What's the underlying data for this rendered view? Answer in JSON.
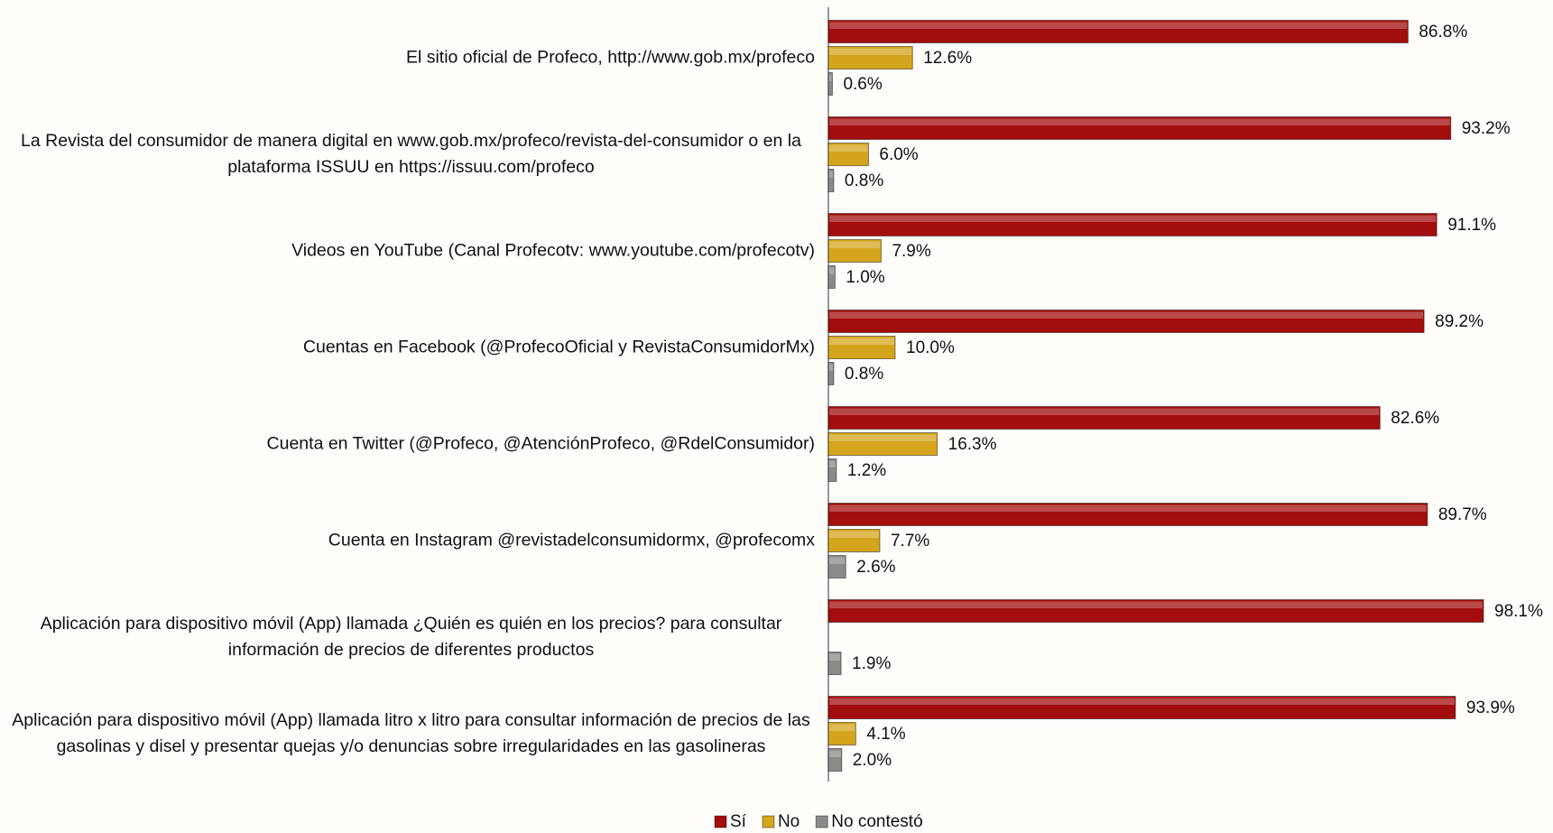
{
  "chart_data": {
    "type": "bar",
    "orientation": "horizontal",
    "categories": [
      "El sitio oficial de Profeco, http://www.gob.mx/profeco",
      "La Revista del consumidor de manera digital  en  www.gob.mx/profeco/revista-del-consumidor o en la plataforma ISSUU en https://issuu.com/profeco",
      "Videos en YouTube (Canal Profecotv: www.youtube.com/profecotv)",
      "Cuentas en Facebook (@ProfecoOficial y RevistaConsumidorMx)",
      "Cuenta en Twitter (@Profeco, @AtenciónProfeco, @RdelConsumidor)",
      "Cuenta en Instagram @revistadelconsumidormx, @profecomx",
      "Aplicación para dispositivo móvil (App) llamada ¿Quién es quién en los precios? para consultar información de precios de diferentes productos",
      "Aplicación para dispositivo móvil (App)  llamada litro x litro para consultar información de precios de las gasolinas y disel y presentar quejas y/o denuncias sobre irregularidades en las gasolineras"
    ],
    "series": [
      {
        "name": "Sí",
        "color": "#a30d0d",
        "values": [
          86.8,
          93.2,
          91.1,
          89.2,
          82.6,
          89.7,
          98.1,
          93.9
        ],
        "value_labels": [
          "86.8%",
          "93.2%",
          "91.1%",
          "89.2%",
          "82.6%",
          "89.7%",
          "98.1%",
          "93.9%"
        ]
      },
      {
        "name": "No",
        "color": "#d4a51c",
        "values": [
          12.6,
          6.0,
          7.9,
          10.0,
          16.3,
          7.7,
          null,
          4.1
        ],
        "value_labels": [
          "12.6%",
          "6.0%",
          "7.9%",
          "10.0%",
          "16.3%",
          "7.7%",
          null,
          "4.1%"
        ]
      },
      {
        "name": "No contestó",
        "color": "#8a8a8a",
        "values": [
          0.6,
          0.8,
          1.0,
          0.8,
          1.2,
          2.6,
          1.9,
          2.0
        ],
        "value_labels": [
          "0.6%",
          "0.8%",
          "1.0%",
          "0.8%",
          "1.2%",
          "2.6%",
          "1.9%",
          "2.0%"
        ]
      }
    ],
    "legend": "bottom"
  }
}
